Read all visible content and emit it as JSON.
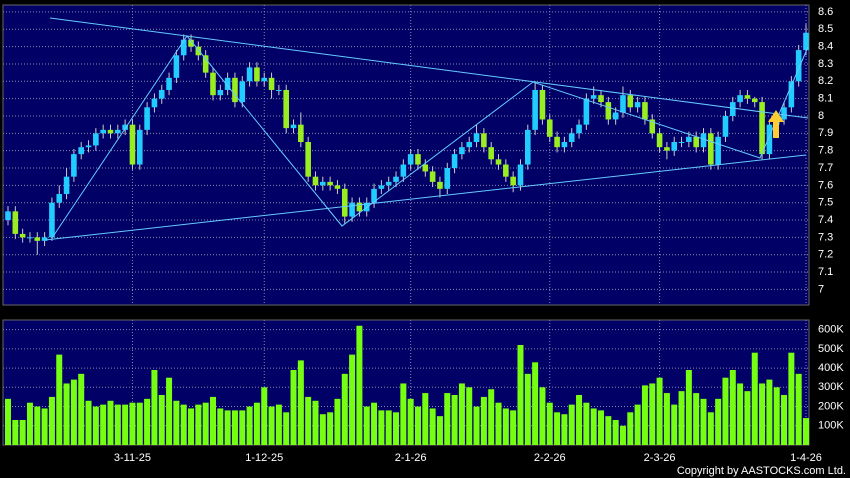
{
  "chart_data": {
    "type": "candlestick",
    "categories": [
      null,
      null,
      null,
      null,
      null,
      null,
      null,
      null,
      null,
      null,
      null,
      null,
      null,
      null,
      null,
      null,
      null,
      "3-11-25",
      null,
      null,
      null,
      null,
      null,
      null,
      null,
      null,
      null,
      null,
      null,
      null,
      null,
      null,
      null,
      null,
      null,
      "1-12-25",
      null,
      null,
      null,
      null,
      null,
      null,
      null,
      null,
      null,
      null,
      null,
      null,
      null,
      null,
      null,
      null,
      null,
      null,
      null,
      "2-1-26",
      null,
      null,
      null,
      null,
      null,
      null,
      null,
      null,
      null,
      null,
      null,
      null,
      null,
      null,
      null,
      null,
      null,
      null,
      "2-2-26",
      null,
      null,
      null,
      null,
      null,
      null,
      null,
      null,
      null,
      null,
      null,
      null,
      null,
      null,
      "2-3-26",
      null,
      null,
      null,
      null,
      null,
      null,
      null,
      null,
      null,
      null,
      null,
      null,
      null,
      null,
      null,
      null,
      null,
      null,
      null,
      "1-4-26"
    ],
    "open": [
      7.4,
      7.45,
      7.32,
      7.3,
      7.3,
      7.28,
      7.3,
      7.5,
      7.55,
      7.65,
      7.78,
      7.82,
      7.83,
      7.9,
      7.92,
      7.9,
      7.92,
      7.95,
      7.72,
      7.92,
      8.05,
      8.1,
      8.15,
      8.22,
      8.35,
      8.44,
      8.4,
      8.35,
      8.25,
      8.12,
      8.15,
      8.22,
      8.08,
      8.2,
      8.28,
      8.2,
      8.22,
      8.15,
      8.15,
      7.93,
      7.95,
      7.85,
      7.65,
      7.6,
      7.62,
      7.6,
      7.58,
      7.42,
      7.5,
      7.45,
      7.5,
      7.58,
      7.6,
      7.62,
      7.65,
      7.72,
      7.78,
      7.72,
      7.68,
      7.62,
      7.58,
      7.7,
      7.78,
      7.82,
      7.85,
      7.9,
      7.82,
      7.75,
      7.72,
      7.65,
      7.6,
      7.72,
      7.92,
      8.15,
      7.98,
      7.88,
      7.82,
      7.85,
      7.9,
      7.95,
      8.1,
      8.12,
      8.08,
      7.98,
      8.02,
      8.12,
      8.05,
      8.08,
      7.98,
      7.9,
      7.82,
      7.8,
      7.85,
      7.85,
      7.88,
      7.82,
      7.9,
      7.72,
      7.88,
      8.0,
      8.08,
      8.12,
      8.1,
      8.08,
      7.78,
      7.95,
      7.98,
      8.05,
      8.2,
      8.38
    ],
    "high": [
      7.48,
      7.48,
      7.35,
      7.33,
      7.33,
      7.33,
      7.53,
      7.6,
      7.7,
      7.81,
      7.85,
      7.86,
      7.93,
      7.95,
      7.95,
      7.95,
      7.98,
      7.98,
      7.95,
      8.08,
      8.13,
      8.18,
      8.25,
      8.38,
      8.47,
      8.47,
      8.43,
      8.38,
      8.28,
      8.18,
      8.25,
      8.25,
      8.23,
      8.31,
      8.31,
      8.25,
      8.25,
      8.18,
      8.18,
      7.98,
      8.02,
      7.88,
      7.68,
      7.65,
      7.65,
      7.63,
      7.61,
      7.53,
      7.53,
      7.53,
      7.61,
      7.63,
      7.65,
      7.68,
      7.75,
      7.81,
      7.81,
      7.75,
      7.71,
      7.65,
      7.73,
      7.81,
      7.85,
      7.88,
      7.95,
      7.93,
      7.85,
      7.78,
      7.75,
      7.68,
      7.75,
      7.95,
      8.2,
      8.18,
      8.01,
      7.91,
      7.88,
      7.93,
      7.98,
      8.13,
      8.17,
      8.15,
      8.11,
      8.05,
      8.17,
      8.15,
      8.11,
      8.11,
      8.01,
      7.93,
      7.85,
      7.88,
      7.88,
      7.91,
      7.91,
      7.93,
      7.93,
      7.91,
      8.03,
      8.11,
      8.15,
      8.15,
      8.11,
      8.11,
      7.98,
      8.01,
      8.08,
      8.23,
      8.41,
      8.53
    ],
    "low": [
      7.37,
      7.29,
      7.27,
      7.27,
      7.2,
      7.25,
      7.28,
      7.47,
      7.52,
      7.62,
      7.75,
      7.79,
      7.8,
      7.87,
      7.87,
      7.87,
      7.89,
      7.69,
      7.69,
      7.89,
      8.02,
      8.07,
      8.12,
      8.19,
      8.32,
      8.37,
      8.32,
      8.22,
      8.09,
      8.09,
      8.12,
      8.05,
      8.05,
      8.17,
      8.17,
      8.17,
      8.1,
      8.12,
      7.9,
      7.9,
      7.82,
      7.62,
      7.57,
      7.57,
      7.57,
      7.55,
      7.38,
      7.39,
      7.42,
      7.42,
      7.47,
      7.55,
      7.57,
      7.59,
      7.62,
      7.69,
      7.69,
      7.65,
      7.59,
      7.53,
      7.55,
      7.67,
      7.75,
      7.79,
      7.82,
      7.79,
      7.72,
      7.69,
      7.62,
      7.56,
      7.57,
      7.69,
      7.89,
      7.95,
      7.85,
      7.79,
      7.79,
      7.82,
      7.87,
      7.92,
      8.07,
      8.05,
      7.95,
      7.95,
      7.99,
      8.02,
      8.02,
      7.95,
      7.87,
      7.79,
      7.75,
      7.77,
      7.82,
      7.82,
      7.79,
      7.79,
      7.69,
      7.69,
      7.85,
      7.97,
      8.05,
      8.07,
      8.05,
      7.75,
      7.75,
      7.92,
      7.95,
      8.02,
      8.17,
      8.35
    ],
    "close": [
      7.45,
      7.32,
      7.3,
      7.3,
      7.28,
      7.3,
      7.5,
      7.55,
      7.65,
      7.78,
      7.82,
      7.83,
      7.9,
      7.92,
      7.9,
      7.92,
      7.95,
      7.72,
      7.92,
      8.05,
      8.1,
      8.15,
      8.22,
      8.35,
      8.44,
      8.4,
      8.35,
      8.25,
      8.12,
      8.15,
      8.22,
      8.08,
      8.2,
      8.28,
      8.2,
      8.22,
      8.15,
      8.15,
      7.93,
      7.95,
      7.85,
      7.65,
      7.6,
      7.62,
      7.6,
      7.58,
      7.42,
      7.5,
      7.45,
      7.5,
      7.58,
      7.6,
      7.62,
      7.65,
      7.72,
      7.78,
      7.72,
      7.68,
      7.62,
      7.58,
      7.7,
      7.78,
      7.82,
      7.85,
      7.9,
      7.82,
      7.75,
      7.72,
      7.65,
      7.6,
      7.72,
      7.92,
      8.15,
      7.98,
      7.88,
      7.82,
      7.85,
      7.9,
      7.95,
      8.1,
      8.12,
      8.08,
      7.98,
      8.02,
      8.12,
      8.05,
      8.08,
      7.98,
      7.9,
      7.82,
      7.8,
      7.85,
      7.85,
      7.88,
      7.82,
      7.9,
      7.72,
      7.88,
      8.0,
      8.08,
      8.12,
      8.1,
      8.08,
      7.78,
      7.95,
      7.98,
      8.05,
      8.2,
      8.38,
      8.48
    ],
    "up_color": "#22ccff",
    "down_color": "#99ee22",
    "ylim": [
      6.91,
      8.64
    ],
    "yticks": [
      7,
      7.1,
      7.2,
      7.3,
      7.4,
      7.5,
      7.6,
      7.7,
      7.8,
      7.9,
      8,
      8.1,
      8.2,
      8.3,
      8.4,
      8.5,
      8.6
    ],
    "grid": true,
    "volume": {
      "color": "#77ff11",
      "values": [
        240000,
        130000,
        130000,
        220000,
        200000,
        190000,
        250000,
        470000,
        320000,
        340000,
        370000,
        230000,
        200000,
        210000,
        230000,
        210000,
        210000,
        220000,
        220000,
        240000,
        390000,
        260000,
        350000,
        230000,
        210000,
        190000,
        210000,
        220000,
        250000,
        190000,
        180000,
        180000,
        180000,
        200000,
        220000,
        300000,
        200000,
        210000,
        170000,
        390000,
        440000,
        250000,
        230000,
        160000,
        170000,
        240000,
        370000,
        470000,
        620000,
        200000,
        220000,
        180000,
        180000,
        170000,
        320000,
        240000,
        200000,
        270000,
        190000,
        150000,
        270000,
        260000,
        320000,
        300000,
        200000,
        250000,
        290000,
        220000,
        190000,
        180000,
        520000,
        370000,
        430000,
        300000,
        220000,
        170000,
        160000,
        210000,
        260000,
        220000,
        190000,
        180000,
        150000,
        130000,
        100000,
        170000,
        210000,
        310000,
        320000,
        350000,
        270000,
        210000,
        280000,
        390000,
        270000,
        240000,
        170000,
        240000,
        350000,
        390000,
        320000,
        280000,
        480000,
        320000,
        340000,
        300000,
        260000,
        480000,
        370000,
        140000
      ],
      "ylim": [
        0,
        650000
      ],
      "yticks": [
        {
          "value": 100000,
          "label": "100K"
        },
        {
          "value": 200000,
          "label": "200K"
        },
        {
          "value": 300000,
          "label": "300K"
        },
        {
          "value": 400000,
          "label": "400K"
        },
        {
          "value": 500000,
          "label": "500K"
        },
        {
          "value": 600000,
          "label": "600K"
        }
      ]
    }
  },
  "footer": "Copyright by AASTOCKS.com Ltd."
}
